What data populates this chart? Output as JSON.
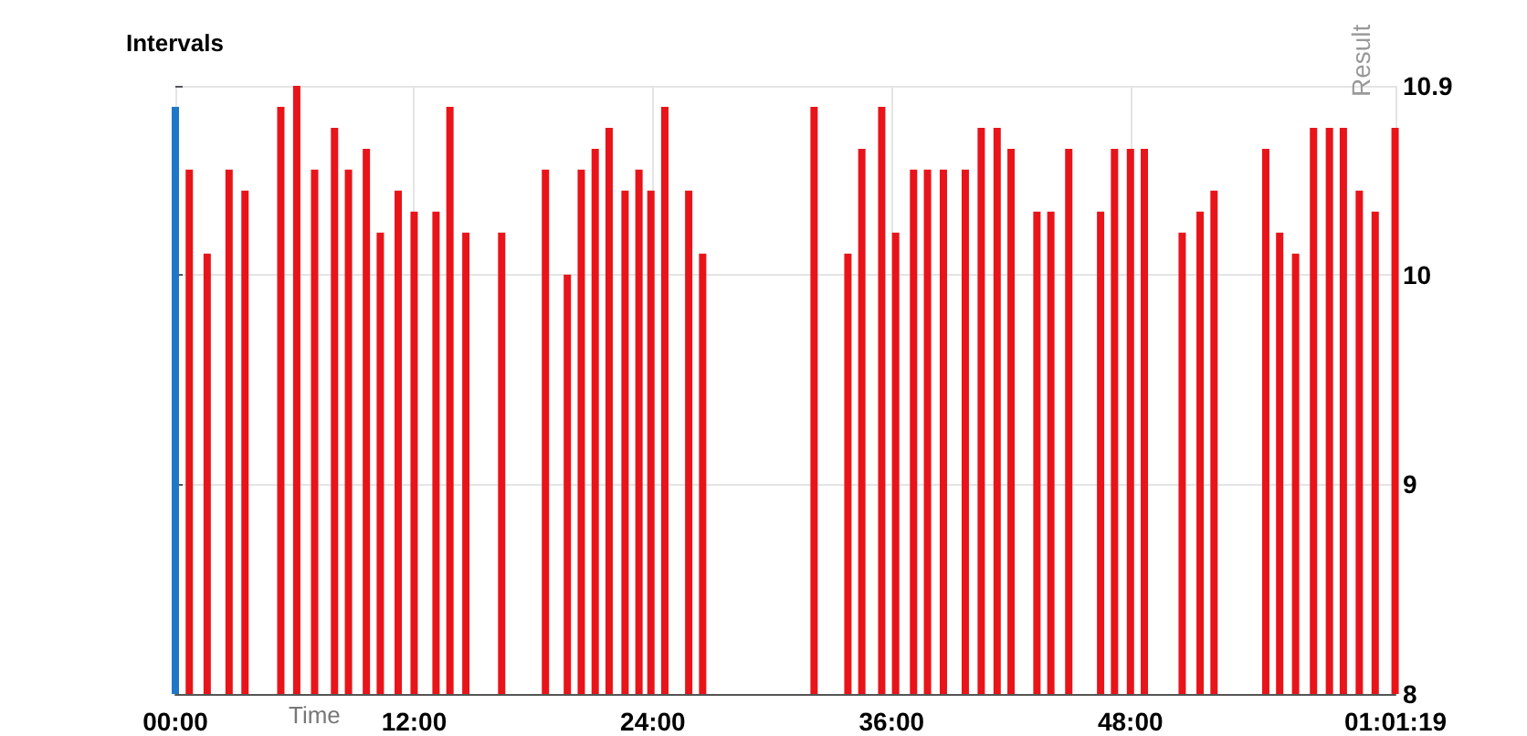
{
  "chart_data": {
    "type": "bar",
    "title": "Intervals",
    "xlabel": "Time",
    "ylabel": "Result",
    "xlim": [
      0,
      61.32
    ],
    "xticks": [
      {
        "value": 0,
        "label": "00:00"
      },
      {
        "value": 12,
        "label": "12:00"
      },
      {
        "value": 24,
        "label": "24:00"
      },
      {
        "value": 36,
        "label": "36:00"
      },
      {
        "value": 48,
        "label": "48:00"
      },
      {
        "value": 61.32,
        "label": "01:01:19"
      }
    ],
    "ylim": [
      8,
      10.9
    ],
    "yticks": [
      8,
      9,
      10,
      10.9
    ],
    "grid": true,
    "series": [
      {
        "color": "#1f77c8",
        "x": [
          0
        ],
        "values": [
          10.8
        ]
      },
      {
        "color": "#e8141a",
        "x": [
          0.7,
          1.6,
          2.7,
          3.5,
          5.3,
          6.1,
          7.0,
          8.0,
          8.7,
          9.6,
          10.3,
          11.2,
          12.0,
          13.1,
          13.8,
          14.6,
          16.4,
          18.6,
          19.7,
          20.4,
          21.1,
          21.8,
          22.6,
          23.3,
          23.9,
          24.6,
          25.8,
          26.5,
          32.1,
          33.8,
          34.5,
          35.5,
          36.2,
          37.1,
          37.8,
          38.6,
          39.7,
          40.5,
          41.3,
          42.0,
          43.3,
          44.0,
          44.9,
          46.5,
          47.2,
          48.0,
          48.7,
          50.6,
          51.5,
          52.2,
          54.8,
          55.5,
          56.3,
          57.2,
          58.0,
          58.7,
          59.5,
          60.3,
          61.3
        ],
        "values": [
          10.5,
          10.1,
          10.5,
          10.4,
          10.8,
          10.9,
          10.5,
          10.7,
          10.5,
          10.6,
          10.2,
          10.4,
          10.3,
          10.3,
          10.8,
          10.2,
          10.2,
          10.5,
          10.0,
          10.5,
          10.6,
          10.7,
          10.4,
          10.5,
          10.4,
          10.8,
          10.4,
          10.1,
          10.8,
          10.1,
          10.6,
          10.8,
          10.2,
          10.5,
          10.5,
          10.5,
          10.5,
          10.7,
          10.7,
          10.6,
          10.3,
          10.3,
          10.6,
          10.3,
          10.6,
          10.6,
          10.6,
          10.2,
          10.3,
          10.4,
          10.6,
          10.2,
          10.1,
          10.7,
          10.7,
          10.7,
          10.4,
          10.3,
          10.7
        ]
      }
    ]
  }
}
